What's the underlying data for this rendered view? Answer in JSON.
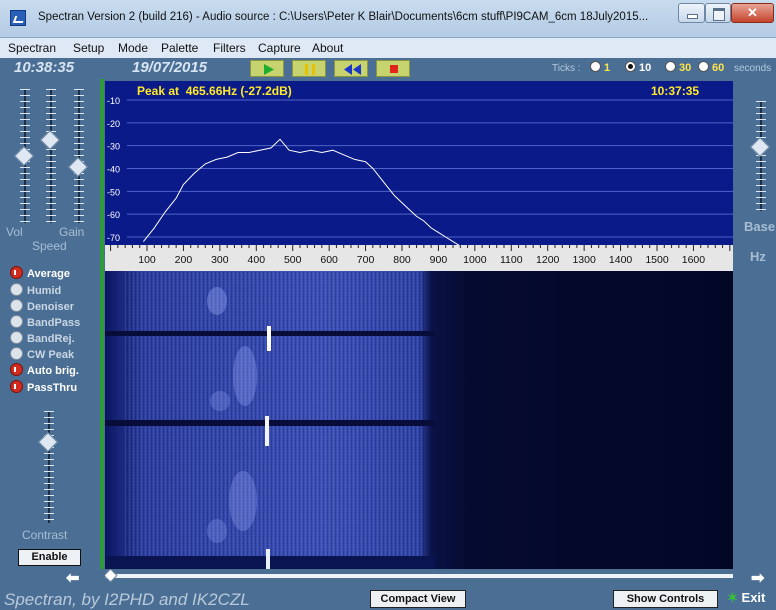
{
  "window": {
    "title": "Spectran Version 2 (build 216) - Audio source : C:\\Users\\Peter K Blair\\Documents\\6cm stuff\\PI9CAM_6cm 18July2015..."
  },
  "menu": [
    "Spectran",
    "Setup",
    "Mode",
    "Palette",
    "Filters",
    "Capture",
    "About"
  ],
  "status": {
    "time": "10:38:35",
    "date": "19/07/2015",
    "ticks_label": "Ticks :",
    "tick_options": [
      {
        "label": "1",
        "selected": false
      },
      {
        "label": "10",
        "selected": true
      },
      {
        "label": "30",
        "selected": false
      },
      {
        "label": "60",
        "selected": false
      }
    ],
    "seconds_label": "seconds"
  },
  "left_panel": {
    "vol_label": "Vol",
    "gain_label": "Gain",
    "speed_label": "Speed",
    "contrast_label": "Contrast",
    "enable_label": "Enable",
    "vol_level": 0.5,
    "gain_level": 0.62,
    "speed_level": 0.42,
    "contrast_level": 0.72,
    "options": [
      {
        "label": "Average",
        "checked": true
      },
      {
        "label": "Humid",
        "checked": false
      },
      {
        "label": "Denoiser",
        "checked": false
      },
      {
        "label": "BandPass",
        "checked": false
      },
      {
        "label": "BandRej.",
        "checked": false
      },
      {
        "label": "CW Peak",
        "checked": false
      },
      {
        "label": "Auto brig.",
        "checked": true
      },
      {
        "label": "PassThru",
        "checked": true
      }
    ]
  },
  "right_panel": {
    "base_label": "Base",
    "hz_label": "Hz",
    "base_level": 0.58
  },
  "spectrum": {
    "peak_text": "Peak at  465.66Hz (-27.2dB)",
    "capture_time": "10:37:35",
    "db_labels": [
      "-10",
      "-20",
      "-30",
      "-40",
      "-50",
      "-60",
      "-70"
    ],
    "freq_labels": [
      "100",
      "200",
      "300",
      "400",
      "500",
      "600",
      "700",
      "800",
      "900",
      "1000",
      "1100",
      "1200",
      "1300",
      "1400",
      "1500",
      "1600"
    ],
    "trace_hz": [
      90,
      120,
      150,
      180,
      200,
      230,
      260,
      290,
      320,
      350,
      380,
      410,
      440,
      465,
      490,
      520,
      550,
      580,
      610,
      640,
      670,
      700,
      720,
      740,
      760,
      780,
      800,
      820,
      840,
      860,
      880,
      900,
      920,
      940,
      960
    ],
    "trace_db": [
      -72,
      -66,
      -59,
      -53,
      -47,
      -42,
      -38,
      -36,
      -35,
      -33,
      -33,
      -32,
      -31,
      -27.2,
      -32,
      -33,
      -32,
      -33,
      -32,
      -34,
      -36,
      -37,
      -40,
      -44,
      -48,
      -52,
      -55,
      -58,
      -61,
      -63,
      -66,
      -68,
      -70,
      -72,
      -74
    ]
  },
  "bottom": {
    "credit": "Spectran, by I2PHD and IK2CZL",
    "compact_view": "Compact View",
    "show_controls": "Show Controls",
    "exit": "Exit"
  }
}
